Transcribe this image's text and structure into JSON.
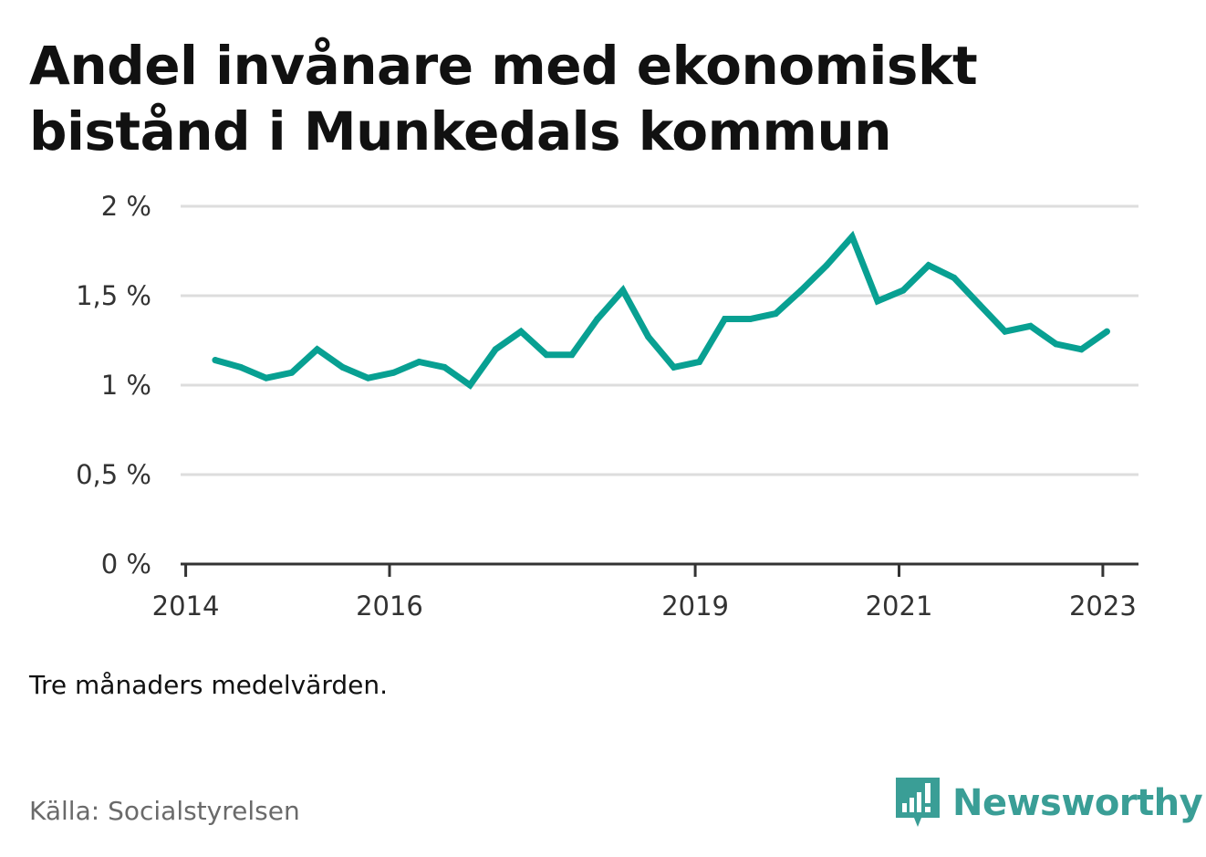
{
  "title_lines": [
    "Andel invånare med ekonomiskt",
    "bistånd i Munkedals kommun"
  ],
  "note": "Tre månaders medelvärden.",
  "source": "Källa: Socialstyrelsen",
  "brand": {
    "name": "Newsworthy",
    "icon": "newsworthy-logo-icon",
    "color": "#3a9e96"
  },
  "chart_data": {
    "type": "line",
    "title": "Andel invånare med ekonomiskt bistånd i Munkedals kommun",
    "xlabel": "",
    "ylabel": "",
    "xlim": [
      2013.95,
      2023.35
    ],
    "ylim": [
      0,
      2
    ],
    "yticks": [
      0,
      0.5,
      1,
      1.5,
      2
    ],
    "ytick_labels": [
      "0 %",
      "0,5 %",
      "1 %",
      "1,5 %",
      "2 %"
    ],
    "xticks": [
      2014,
      2016,
      2019,
      2021,
      2023
    ],
    "xtick_labels": [
      "2014",
      "2016",
      "2019",
      "2021",
      "2023"
    ],
    "grid": true,
    "line_color": "#08a092",
    "series": [
      {
        "x": [
          2014.29,
          2014.54,
          2014.79,
          2015.04,
          2015.29,
          2015.54,
          2015.79,
          2016.04,
          2016.29,
          2016.54,
          2016.79,
          2017.04,
          2017.29,
          2017.54,
          2017.79,
          2018.04,
          2018.29,
          2018.54,
          2018.79,
          2019.04,
          2019.29,
          2019.54,
          2019.79,
          2020.04,
          2020.29,
          2020.54,
          2020.79,
          2021.04,
          2021.29,
          2021.54,
          2021.79,
          2022.04,
          2022.29,
          2022.54,
          2022.79,
          2023.04
        ],
        "values": [
          1.14,
          1.1,
          1.04,
          1.07,
          1.2,
          1.1,
          1.04,
          1.07,
          1.13,
          1.1,
          1.0,
          1.2,
          1.3,
          1.17,
          1.17,
          1.37,
          1.53,
          1.27,
          1.1,
          1.13,
          1.37,
          1.37,
          1.4,
          1.53,
          1.67,
          1.83,
          1.47,
          1.53,
          1.67,
          1.6,
          1.45,
          1.3,
          1.33,
          1.23,
          1.2,
          1.3
        ]
      }
    ]
  }
}
